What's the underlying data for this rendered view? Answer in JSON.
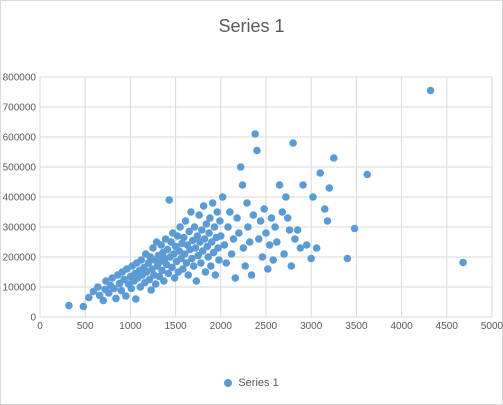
{
  "chart_data": {
    "type": "scatter",
    "title": "Series 1",
    "xlabel": "",
    "ylabel": "",
    "xlim": [
      0,
      5000
    ],
    "ylim": [
      0,
      800000
    ],
    "x_ticks": [
      "0",
      "500",
      "1000",
      "1500",
      "2000",
      "2500",
      "3000",
      "3500",
      "4000",
      "4500",
      "5000"
    ],
    "y_ticks": [
      "0",
      "100000",
      "200000",
      "300000",
      "400000",
      "500000",
      "600000",
      "700000",
      "800000"
    ],
    "grid": true,
    "legend": {
      "position": "bottom",
      "entries": [
        "Series 1"
      ]
    },
    "colors": {
      "marker": "#5B9BD5",
      "grid": "#D9D9D9",
      "text": "#595959"
    },
    "series": [
      {
        "name": "Series 1",
        "points": [
          [
            320,
            38000
          ],
          [
            480,
            35000
          ],
          [
            540,
            65000
          ],
          [
            590,
            85000
          ],
          [
            640,
            100000
          ],
          [
            660,
            72000
          ],
          [
            700,
            55000
          ],
          [
            720,
            92000
          ],
          [
            730,
            120000
          ],
          [
            760,
            80000
          ],
          [
            780,
            105000
          ],
          [
            800,
            130000
          ],
          [
            820,
            95000
          ],
          [
            840,
            62000
          ],
          [
            860,
            140000
          ],
          [
            880,
            112000
          ],
          [
            900,
            88000
          ],
          [
            910,
            150000
          ],
          [
            930,
            125000
          ],
          [
            950,
            70000
          ],
          [
            960,
            160000
          ],
          [
            980,
            110000
          ],
          [
            1000,
            135000
          ],
          [
            1010,
            95000
          ],
          [
            1020,
            170000
          ],
          [
            1040,
            120000
          ],
          [
            1050,
            145000
          ],
          [
            1060,
            60000
          ],
          [
            1070,
            180000
          ],
          [
            1080,
            130000
          ],
          [
            1100,
            155000
          ],
          [
            1110,
            100000
          ],
          [
            1120,
            190000
          ],
          [
            1130,
            140000
          ],
          [
            1150,
            165000
          ],
          [
            1160,
            115000
          ],
          [
            1170,
            210000
          ],
          [
            1180,
            150000
          ],
          [
            1200,
            180000
          ],
          [
            1210,
            125000
          ],
          [
            1220,
            200000
          ],
          [
            1230,
            90000
          ],
          [
            1240,
            160000
          ],
          [
            1250,
            230000
          ],
          [
            1260,
            140000
          ],
          [
            1270,
            190000
          ],
          [
            1280,
            110000
          ],
          [
            1290,
            250000
          ],
          [
            1300,
            170000
          ],
          [
            1310,
            205000
          ],
          [
            1320,
            135000
          ],
          [
            1330,
            185000
          ],
          [
            1340,
            240000
          ],
          [
            1350,
            155000
          ],
          [
            1360,
            215000
          ],
          [
            1370,
            120000
          ],
          [
            1380,
            195000
          ],
          [
            1390,
            260000
          ],
          [
            1400,
            175000
          ],
          [
            1410,
            225000
          ],
          [
            1420,
            145000
          ],
          [
            1430,
            390000
          ],
          [
            1440,
            200000
          ],
          [
            1450,
            250000
          ],
          [
            1460,
            165000
          ],
          [
            1470,
            280000
          ],
          [
            1480,
            210000
          ],
          [
            1490,
            130000
          ],
          [
            1500,
            235000
          ],
          [
            1510,
            185000
          ],
          [
            1520,
            270000
          ],
          [
            1530,
            150000
          ],
          [
            1540,
            220000
          ],
          [
            1550,
            300000
          ],
          [
            1560,
            195000
          ],
          [
            1570,
            245000
          ],
          [
            1580,
            160000
          ],
          [
            1590,
            265000
          ],
          [
            1600,
            210000
          ],
          [
            1610,
            320000
          ],
          [
            1620,
            180000
          ],
          [
            1630,
            240000
          ],
          [
            1640,
            140000
          ],
          [
            1650,
            285000
          ],
          [
            1660,
            225000
          ],
          [
            1670,
            350000
          ],
          [
            1680,
            195000
          ],
          [
            1690,
            255000
          ],
          [
            1700,
            170000
          ],
          [
            1710,
            300000
          ],
          [
            1720,
            230000
          ],
          [
            1730,
            120000
          ],
          [
            1740,
            270000
          ],
          [
            1750,
            205000
          ],
          [
            1760,
            340000
          ],
          [
            1770,
            250000
          ],
          [
            1780,
            180000
          ],
          [
            1790,
            290000
          ],
          [
            1800,
            220000
          ],
          [
            1810,
            370000
          ],
          [
            1820,
            260000
          ],
          [
            1830,
            150000
          ],
          [
            1840,
            310000
          ],
          [
            1850,
            235000
          ],
          [
            1860,
            200000
          ],
          [
            1870,
            280000
          ],
          [
            1880,
            330000
          ],
          [
            1890,
            170000
          ],
          [
            1900,
            250000
          ],
          [
            1910,
            380000
          ],
          [
            1920,
            215000
          ],
          [
            1930,
            300000
          ],
          [
            1940,
            140000
          ],
          [
            1950,
            265000
          ],
          [
            1960,
            350000
          ],
          [
            1970,
            230000
          ],
          [
            1980,
            190000
          ],
          [
            1990,
            320000
          ],
          [
            2000,
            270000
          ],
          [
            2020,
            400000
          ],
          [
            2040,
            240000
          ],
          [
            2060,
            180000
          ],
          [
            2080,
            300000
          ],
          [
            2100,
            350000
          ],
          [
            2120,
            210000
          ],
          [
            2140,
            260000
          ],
          [
            2160,
            130000
          ],
          [
            2180,
            330000
          ],
          [
            2200,
            280000
          ],
          [
            2220,
            500000
          ],
          [
            2240,
            440000
          ],
          [
            2250,
            230000
          ],
          [
            2270,
            170000
          ],
          [
            2290,
            380000
          ],
          [
            2300,
            300000
          ],
          [
            2320,
            250000
          ],
          [
            2340,
            140000
          ],
          [
            2360,
            340000
          ],
          [
            2380,
            610000
          ],
          [
            2400,
            555000
          ],
          [
            2420,
            260000
          ],
          [
            2440,
            320000
          ],
          [
            2460,
            200000
          ],
          [
            2480,
            360000
          ],
          [
            2500,
            280000
          ],
          [
            2520,
            160000
          ],
          [
            2540,
            240000
          ],
          [
            2560,
            330000
          ],
          [
            2580,
            190000
          ],
          [
            2600,
            300000
          ],
          [
            2620,
            250000
          ],
          [
            2650,
            440000
          ],
          [
            2680,
            350000
          ],
          [
            2700,
            210000
          ],
          [
            2720,
            400000
          ],
          [
            2740,
            330000
          ],
          [
            2760,
            290000
          ],
          [
            2780,
            170000
          ],
          [
            2800,
            580000
          ],
          [
            2820,
            260000
          ],
          [
            2850,
            290000
          ],
          [
            2880,
            230000
          ],
          [
            2910,
            440000
          ],
          [
            2950,
            240000
          ],
          [
            3000,
            195000
          ],
          [
            3020,
            400000
          ],
          [
            3060,
            230000
          ],
          [
            3100,
            480000
          ],
          [
            3150,
            360000
          ],
          [
            3180,
            320000
          ],
          [
            3200,
            430000
          ],
          [
            3250,
            530000
          ],
          [
            3400,
            195000
          ],
          [
            3480,
            295000
          ],
          [
            3620,
            475000
          ],
          [
            4320,
            755000
          ],
          [
            4680,
            182000
          ]
        ]
      }
    ]
  }
}
